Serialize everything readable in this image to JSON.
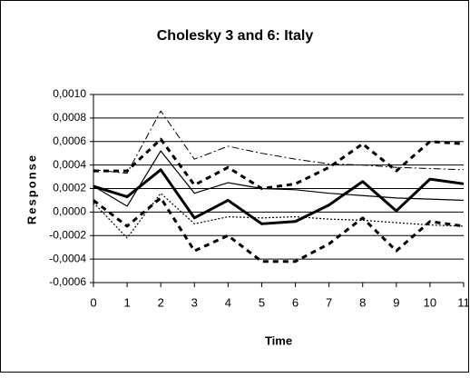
{
  "chart_data": {
    "type": "line",
    "title": "Cholesky 3 and 6: Italy",
    "x_label": "Time",
    "y_label": "Response",
    "x": [
      0,
      1,
      2,
      3,
      4,
      5,
      6,
      7,
      8,
      9,
      10,
      11
    ],
    "xlim": [
      0,
      11
    ],
    "xticks": [
      0,
      1,
      2,
      3,
      4,
      5,
      6,
      7,
      8,
      9,
      10,
      11
    ],
    "ylim": [
      -0.0006,
      0.001
    ],
    "yticks": [
      {
        "value": -0.0006,
        "label": "-0,0006"
      },
      {
        "value": -0.0004,
        "label": "-0,0004"
      },
      {
        "value": -0.0002,
        "label": "-0,0002"
      },
      {
        "value": 0,
        "label": "0,0000"
      },
      {
        "value": 0.0002,
        "label": "0,0002"
      },
      {
        "value": 0.0004,
        "label": "0,0004"
      },
      {
        "value": 0.0006,
        "label": "0,0006"
      },
      {
        "value": 0.0008,
        "label": "0,0008"
      },
      {
        "value": 0.001,
        "label": "0,0010"
      }
    ],
    "grid": true,
    "series": [
      {
        "color": "#000000",
        "width": 3,
        "dash": "none",
        "values": [
          0.00022,
          0.00013,
          0.00036,
          -5e-05,
          0.0001,
          -0.0001,
          -8e-05,
          6e-05,
          0.00026,
          1e-05,
          0.00028,
          0.00024
        ]
      },
      {
        "color": "#000000",
        "width": 1.2,
        "dash": "none",
        "values": [
          0.00022,
          5e-05,
          0.00052,
          0.00016,
          0.00025,
          0.0002,
          0.00019,
          0.00016,
          0.00014,
          0.00012,
          0.00011,
          0.0001
        ]
      },
      {
        "color": "#000000",
        "width": 3,
        "dash": "6 5",
        "values": [
          0.00035,
          0.00035,
          0.00062,
          0.00023,
          0.00038,
          0.0002,
          0.00024,
          0.00038,
          0.00058,
          0.00035,
          0.0006,
          0.00058
        ]
      },
      {
        "color": "#000000",
        "width": 3,
        "dash": "6 5",
        "values": [
          0.0001,
          -0.00012,
          0.00012,
          -0.00033,
          -0.0002,
          -0.00042,
          -0.00042,
          -0.00027,
          -5e-05,
          -0.00033,
          -8e-05,
          -0.00012
        ]
      },
      {
        "color": "#000000",
        "width": 1,
        "dash": "8 3 2 3",
        "values": [
          0.00036,
          0.00033,
          0.00086,
          0.00045,
          0.00056,
          0.0005,
          0.00045,
          0.00041,
          0.0004,
          0.00038,
          0.00037,
          0.00036
        ]
      },
      {
        "color": "#000000",
        "width": 1.2,
        "dash": "2 2",
        "values": [
          8e-05,
          -0.00022,
          0.00016,
          -0.0001,
          -4e-05,
          -5e-05,
          -4e-05,
          -6e-05,
          -7e-05,
          -9e-05,
          -0.00011,
          -0.00012
        ]
      }
    ]
  }
}
